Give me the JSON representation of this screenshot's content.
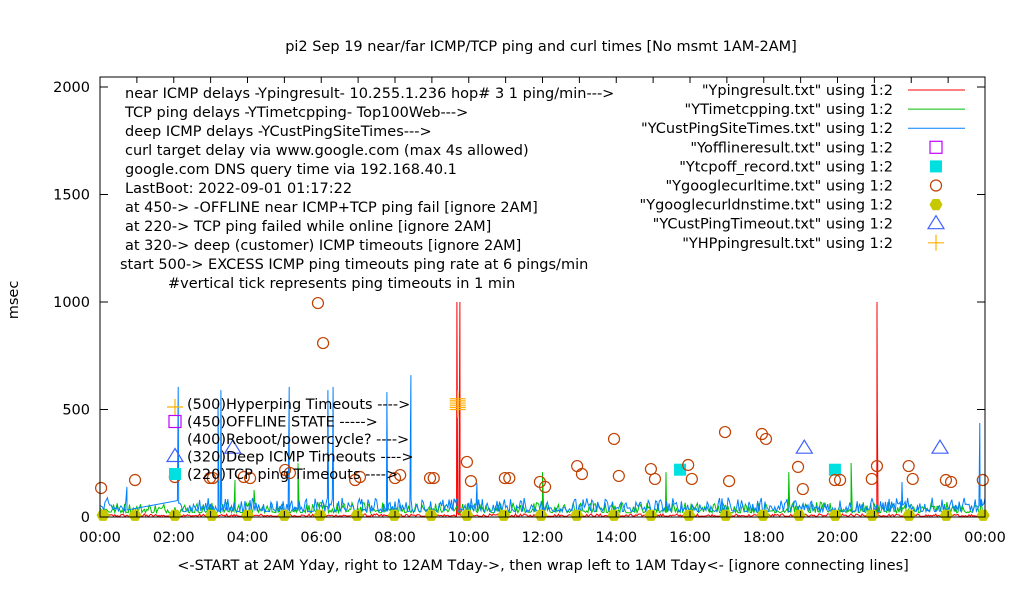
{
  "chart_data": {
    "type": "line",
    "title": "pi2 Sep 19  near/far ICMP/TCP ping and curl times [No msmt 1AM-2AM]",
    "xlabel": "<-START at 2AM Yday, right to 12AM Tday->, then wrap left to 1AM Tday<- [ignore connecting lines]",
    "ylabel": "msec",
    "xlim_hours": [
      0,
      24
    ],
    "ylim": [
      0,
      2050
    ],
    "x_ticks": [
      "00:00",
      "02:00",
      "04:00",
      "06:00",
      "08:00",
      "10:00",
      "12:00",
      "14:00",
      "16:00",
      "18:00",
      "20:00",
      "22:00",
      "00:00"
    ],
    "y_ticks": [
      0,
      500,
      1000,
      1500,
      2000
    ],
    "grid": false,
    "legend_placement": "top-right",
    "notes": [
      "near ICMP delays -Ypingresult- 10.255.1.236 hop# 3 1 ping/min--->",
      "TCP ping delays -YTimetcpping- Top100Web--->",
      "deep ICMP delays -YCustPingSiteTimes--->",
      "curl target delay via www.google.com (max 4s allowed)",
      "google.com DNS query time via 192.168.40.1",
      "LastBoot: 2022-09-01 01:17:22",
      "at 450-> -OFFLINE near ICMP+TCP ping fail [ignore 2AM]",
      "at 220-> TCP ping failed while online [ignore 2AM]",
      "at 320-> deep (customer) ICMP timeouts [ignore 2AM]",
      "start 500-> EXCESS ICMP ping timeouts ping rate at 6 pings/min",
      "#vertical tick represents ping timeouts in 1 min"
    ],
    "marker_labels": [
      "(500)Hyperping Timeouts ---->",
      "(450)OFFLINE STATE ----->",
      "(400)Reboot/powercycle? ---->",
      "(320)Deep ICMP Timeouts ---->",
      "(220)TCP ping Timeouts ---->"
    ],
    "series": [
      {
        "name": "\"Ypingresult.txt\" using 1:2",
        "style": "line",
        "color": "#ff0000",
        "baseline": [
          3,
          15
        ],
        "spikes": [
          [
            9.68,
            1000
          ],
          [
            9.76,
            1000
          ],
          [
            21.07,
            1000
          ],
          [
            21.08,
            500
          ]
        ]
      },
      {
        "name": "\"YTimetcpping.txt\" using 1:2",
        "style": "line",
        "color": "#00c000",
        "baseline": [
          20,
          70
        ],
        "spikes": [
          [
            3.66,
            172
          ],
          [
            4.18,
            126
          ],
          [
            5.37,
            250
          ],
          [
            12.0,
            209
          ],
          [
            15.35,
            209
          ],
          [
            18.68,
            209
          ],
          [
            20.37,
            251
          ]
        ]
      },
      {
        "name": "\"YCustPingSiteTimes.txt\" using 1:2",
        "style": "line",
        "color": "#0080ff",
        "baseline": [
          25,
          90
        ],
        "gap_hours": [
          0.75,
          2.1
        ],
        "spikes": [
          [
            0.73,
            140
          ],
          [
            2.12,
            605
          ],
          [
            3.2,
            530
          ],
          [
            3.28,
            590
          ],
          [
            5.13,
            605
          ],
          [
            6.18,
            590
          ],
          [
            6.32,
            605
          ],
          [
            7.78,
            581
          ],
          [
            8.43,
            660
          ],
          [
            10.22,
            158
          ],
          [
            21.75,
            163
          ],
          [
            23.86,
            437
          ]
        ]
      },
      {
        "name": "\"Yofflineresult.txt\" using 1:2",
        "style": "open-square",
        "color": "#c000ff",
        "points": []
      },
      {
        "name": "\"Ytcpoff_record.txt\" using 1:2",
        "style": "filled-square",
        "color": "#00e0e0",
        "points": [
          [
            15.73,
            220
          ],
          [
            19.93,
            220
          ]
        ]
      },
      {
        "name": "\"Ygooglecurltime.txt\" using 1:2",
        "style": "open-circle",
        "color": "#c04000",
        "points": [
          [
            0.03,
            135
          ],
          [
            0.95,
            172
          ],
          [
            2.03,
            186
          ],
          [
            2.98,
            181
          ],
          [
            3.06,
            181
          ],
          [
            3.9,
            186
          ],
          [
            4.07,
            181
          ],
          [
            5.02,
            219
          ],
          [
            5.15,
            205
          ],
          [
            5.91,
            995
          ],
          [
            6.05,
            809
          ],
          [
            6.92,
            172
          ],
          [
            7.05,
            186
          ],
          [
            8.0,
            181
          ],
          [
            8.14,
            195
          ],
          [
            8.95,
            181
          ],
          [
            9.05,
            181
          ],
          [
            9.95,
            256
          ],
          [
            10.06,
            167
          ],
          [
            10.98,
            181
          ],
          [
            11.1,
            181
          ],
          [
            11.93,
            163
          ],
          [
            12.07,
            140
          ],
          [
            12.94,
            237
          ],
          [
            13.07,
            200
          ],
          [
            13.94,
            363
          ],
          [
            14.07,
            191
          ],
          [
            14.94,
            223
          ],
          [
            15.05,
            177
          ],
          [
            15.95,
            242
          ],
          [
            16.05,
            177
          ],
          [
            16.95,
            395
          ],
          [
            17.06,
            167
          ],
          [
            17.95,
            386
          ],
          [
            18.06,
            363
          ],
          [
            18.93,
            233
          ],
          [
            19.06,
            130
          ],
          [
            19.93,
            172
          ],
          [
            20.07,
            172
          ],
          [
            20.93,
            177
          ],
          [
            21.07,
            237
          ],
          [
            21.93,
            237
          ],
          [
            22.04,
            177
          ],
          [
            22.94,
            172
          ],
          [
            23.08,
            163
          ],
          [
            23.94,
            172
          ]
        ]
      },
      {
        "name": "\"Ygooglecurldnstime.txt\" using 1:2",
        "style": "filled-hexagon",
        "color": "#c8c800",
        "points": [
          [
            0.08,
            8
          ],
          [
            0.95,
            8
          ],
          [
            2.03,
            8
          ],
          [
            3.03,
            8
          ],
          [
            4.0,
            8
          ],
          [
            5.0,
            8
          ],
          [
            5.97,
            8
          ],
          [
            6.97,
            8
          ],
          [
            7.98,
            8
          ],
          [
            8.98,
            8
          ],
          [
            9.95,
            8
          ],
          [
            10.95,
            8
          ],
          [
            11.96,
            8
          ],
          [
            12.93,
            8
          ],
          [
            13.94,
            8
          ],
          [
            14.94,
            8
          ],
          [
            15.97,
            8
          ],
          [
            16.97,
            8
          ],
          [
            17.98,
            8
          ],
          [
            18.96,
            8
          ],
          [
            19.94,
            8
          ],
          [
            20.94,
            8
          ],
          [
            21.94,
            8
          ],
          [
            22.95,
            8
          ],
          [
            23.95,
            8
          ]
        ]
      },
      {
        "name": "\"YCustPingTimeout.txt\" using 1:2",
        "style": "open-triangle",
        "color": "#4060ff",
        "points": [
          [
            3.6,
            320
          ],
          [
            19.1,
            320
          ],
          [
            22.78,
            320
          ]
        ]
      },
      {
        "name": "\"YHPpingresult.txt\" using 1:2",
        "style": "plus",
        "color": "#ffb000",
        "points": [
          [
            9.7,
            500
          ],
          [
            9.7,
            510
          ],
          [
            9.7,
            520
          ],
          [
            9.7,
            530
          ],
          [
            9.7,
            540
          ],
          [
            9.7,
            550
          ]
        ]
      }
    ]
  }
}
